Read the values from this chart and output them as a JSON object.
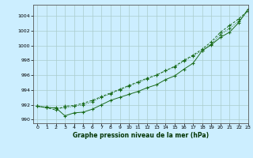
{
  "title": "Graphe pression niveau de la mer (hPa)",
  "background_color": "#cceeff",
  "grid_color": "#aacccc",
  "line_color": "#1a6b1a",
  "xlim": [
    -0.5,
    23
  ],
  "ylim": [
    989.5,
    1005.5
  ],
  "yticks": [
    990,
    992,
    994,
    996,
    998,
    1000,
    1002,
    1004
  ],
  "xticks": [
    0,
    1,
    2,
    3,
    4,
    5,
    6,
    7,
    8,
    9,
    10,
    11,
    12,
    13,
    14,
    15,
    16,
    17,
    18,
    19,
    20,
    21,
    22,
    23
  ],
  "series1": [
    991.8,
    991.6,
    991.6,
    990.5,
    990.9,
    991.0,
    991.4,
    992.0,
    992.6,
    993.0,
    993.4,
    993.8,
    994.3,
    994.7,
    995.4,
    995.9,
    996.8,
    997.6,
    999.3,
    1000.1,
    1001.1,
    1001.8,
    1003.1,
    1004.9
  ],
  "series2": [
    991.8,
    991.6,
    991.3,
    991.8,
    991.9,
    992.2,
    992.6,
    993.1,
    993.6,
    994.1,
    994.6,
    995.1,
    995.6,
    996.0,
    996.6,
    997.2,
    998.0,
    998.7,
    999.5,
    1000.5,
    1001.8,
    1002.7,
    1003.6,
    1004.7
  ],
  "series3": [
    991.8,
    991.7,
    991.5,
    991.6,
    991.8,
    992.0,
    992.4,
    993.0,
    993.5,
    994.0,
    994.5,
    995.0,
    995.5,
    996.0,
    996.6,
    997.1,
    997.9,
    998.6,
    999.3,
    1000.2,
    1001.5,
    1002.3,
    1003.3,
    1004.6
  ]
}
